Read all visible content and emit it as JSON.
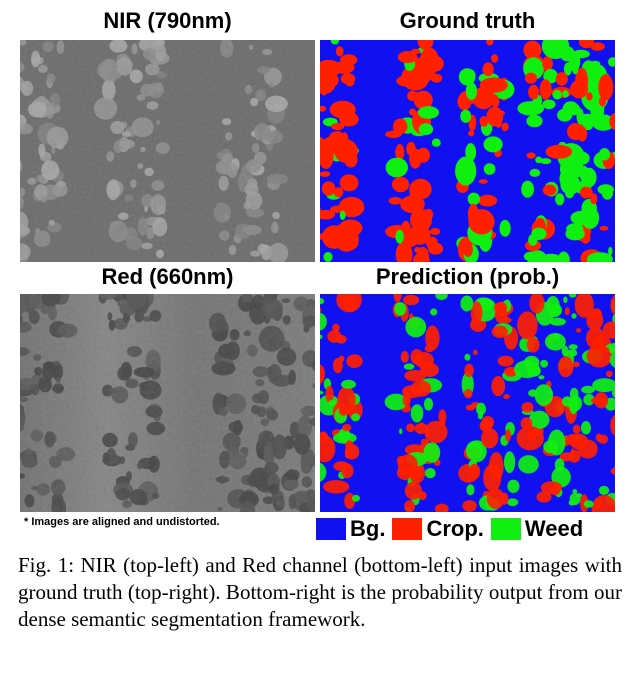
{
  "panels": {
    "nir_title": "NIR (790nm)",
    "gt_title": "Ground truth",
    "red_title": "Red (660nm)",
    "pred_title": "Prediction (prob.)"
  },
  "note": "* Images are aligned and undistorted.",
  "legend": {
    "items": [
      {
        "label": "Bg.",
        "color": "#1010f0"
      },
      {
        "label": "Crop.",
        "color": "#ff2000"
      },
      {
        "label": "Weed",
        "color": "#10f010"
      }
    ]
  },
  "caption": "Fig. 1: NIR (top-left) and Red channel (bottom-left) input images with ground truth (top-right). Bottom-right is the probability output from our dense semantic segmentation framework.",
  "colors": {
    "background_class": "#1010f0",
    "crop_class": "#ff2000",
    "weed_class": "#10f010",
    "nir_base": "#6e6e6e",
    "red_base": "#5a5a5a"
  }
}
